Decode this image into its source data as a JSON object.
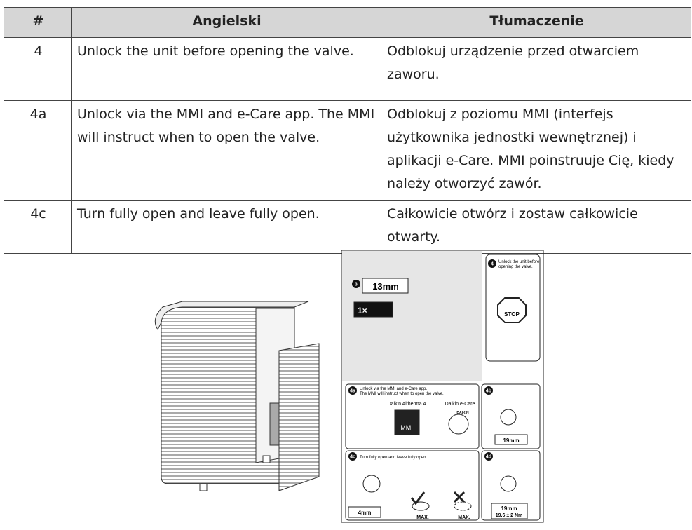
{
  "table": {
    "header": [
      "#",
      "Angielski",
      "Tłumaczenie"
    ],
    "rows": [
      [
        "4",
        "Unlock the unit before opening the valve.",
        "Odblokuj urządzenie przed otwarciem zaworu."
      ],
      [
        "4a",
        "Unlock via the MMI and e-Care app. The MMI will instruct when to open the valve.",
        "Odblokuj z poziomu MMI (interfejs użytkownika jednostki wewnętrznej) i aplikacji e-Care. MMI poinstruuje Cię, kiedy należy otworzyć zawór."
      ],
      [
        "4c",
        "Turn fully open and leave fully open.",
        "Całkowicie otwórz i zostaw całkowicie otwarty."
      ]
    ]
  },
  "figure": {
    "step3": {
      "label": "3",
      "wrench": "13mm",
      "count": "1×"
    },
    "step4": {
      "label": "4",
      "lines": [
        "Unlock the unit before",
        "opening the valve."
      ],
      "stop": "STOP"
    },
    "step4a": {
      "label": "4a",
      "lines": [
        "Unlock via the MMI and e-Care app.",
        "The MMI will instruct when to open the valve."
      ],
      "left": "Daikin Altherma 4",
      "right": "Daikin e-Care",
      "mmi": "MMI",
      "brand": "DAIKIN"
    },
    "step4b": {
      "label": "4b",
      "wrench": "19mm"
    },
    "step4c": {
      "label": "4c",
      "text": "Turn fully open and leave fully open.",
      "key": "4mm",
      "max": [
        "MAX.",
        "MAX."
      ]
    },
    "step4d": {
      "label": "4d",
      "wrench": "19mm",
      "torque": "19.6 ± 2 Nm"
    }
  }
}
